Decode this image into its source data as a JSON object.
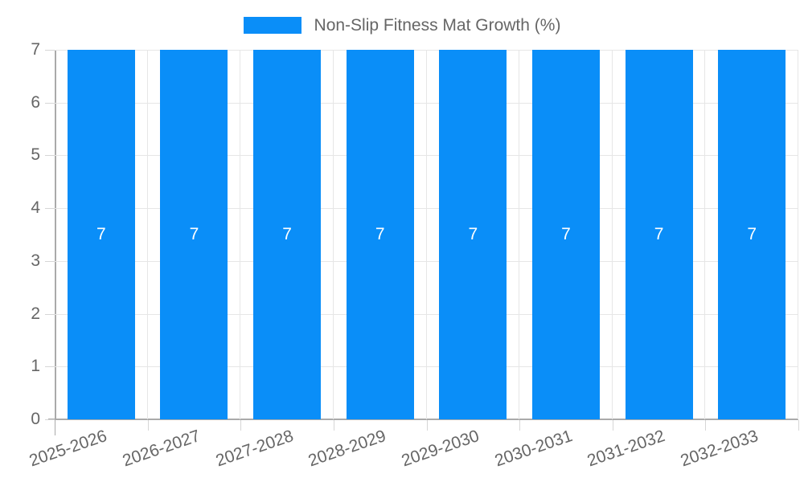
{
  "legend": {
    "label": "Non-Slip Fitness Mat Growth (%)"
  },
  "chart_data": {
    "type": "bar",
    "categories": [
      "2025-2026",
      "2026-2027",
      "2027-2028",
      "2028-2029",
      "2029-2030",
      "2030-2031",
      "2031-2032",
      "2032-2033"
    ],
    "values": [
      7,
      7,
      7,
      7,
      7,
      7,
      7,
      7
    ],
    "series": [
      {
        "name": "Non-Slip Fitness Mat Growth (%)",
        "values": [
          7,
          7,
          7,
          7,
          7,
          7,
          7,
          7
        ]
      }
    ],
    "title": "Non-Slip Fitness Mat Growth (%)",
    "xlabel": "",
    "ylabel": "",
    "ylim": [
      0,
      7
    ],
    "yticks": [
      0,
      1,
      2,
      3,
      4,
      5,
      6,
      7
    ],
    "grid": true,
    "legend_position": "top",
    "bar_value_labels": [
      "7",
      "7",
      "7",
      "7",
      "7",
      "7",
      "7",
      "7"
    ],
    "x_tick_rotation_deg": -19
  },
  "colors": {
    "bar": "#0a8ef8",
    "bar_label": "#ffffff",
    "grid": "#e6e6e6",
    "axis": "#aaaaaa",
    "tick": "#d6d6d6",
    "tick_text": "#666666",
    "background": "#ffffff"
  }
}
